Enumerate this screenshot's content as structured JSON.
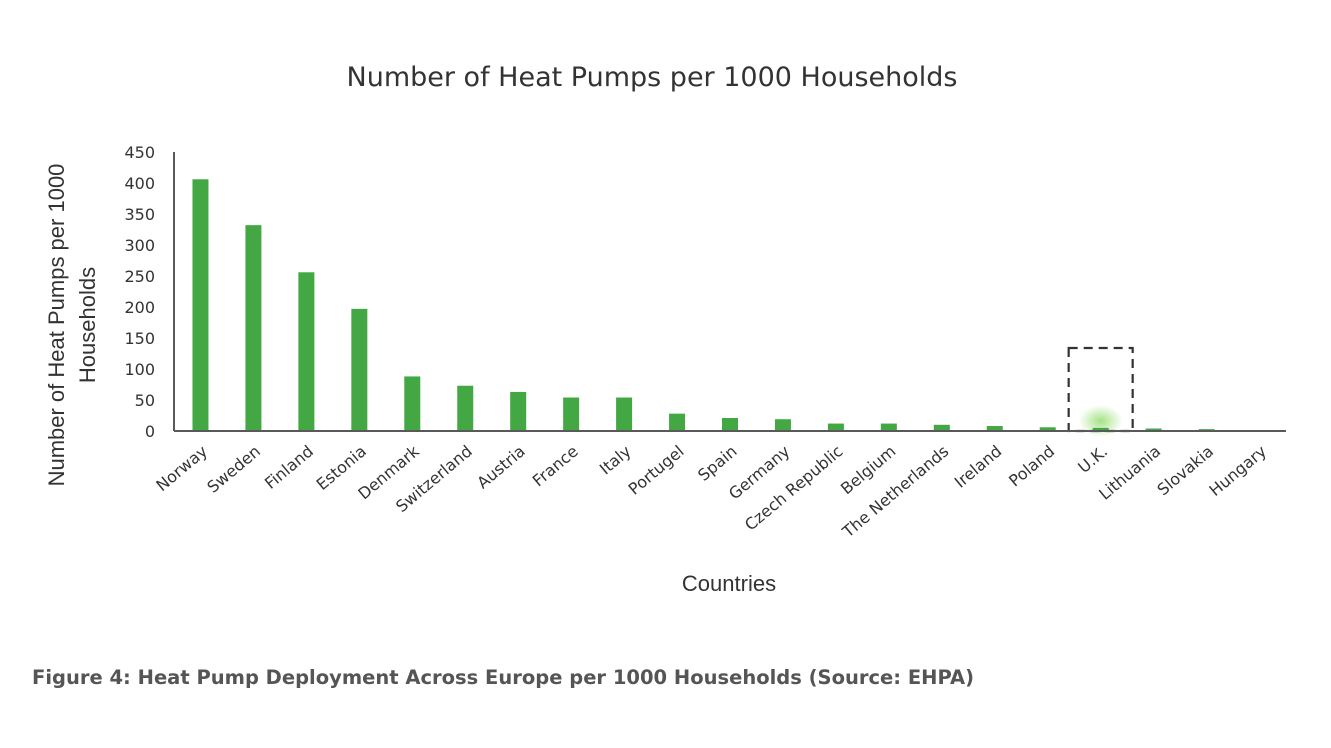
{
  "chart_data": {
    "type": "bar",
    "title": "Number of Heat Pumps per 1000 Households",
    "xlabel": "Countries",
    "ylabel_lines": [
      "Number of Heat Pumps per 1000",
      "Households"
    ],
    "ylim": [
      0,
      450
    ],
    "yticks": [
      "0",
      "50",
      "100",
      "150",
      "200",
      "250",
      "300",
      "350",
      "400",
      "450"
    ],
    "grid": false,
    "legend": "none",
    "bar_color": "#43a843",
    "highlight": {
      "category": "U.K.",
      "style": "dashed-box-with-glow",
      "glow_color": "#9fe27f"
    },
    "categories": [
      "Norway",
      "Sweden",
      "Finland",
      "Estonia",
      "Denmark",
      "Switzerland",
      "Austria",
      "France",
      "Italy",
      "Portugel",
      "Spain",
      "Germany",
      "Czech Republic",
      "Belgium",
      "The Netherlands",
      "Ireland",
      "Poland",
      "U.K.",
      "Lithuania",
      "Slovakia",
      "Hungary"
    ],
    "values": [
      406,
      332,
      256,
      197,
      88,
      73,
      63,
      54,
      54,
      28,
      21,
      19,
      12,
      12,
      10,
      8,
      6,
      5,
      4,
      3,
      1
    ]
  },
  "caption": "Figure 4: Heat Pump Deployment Across Europe per 1000 Households (Source: EHPA)"
}
